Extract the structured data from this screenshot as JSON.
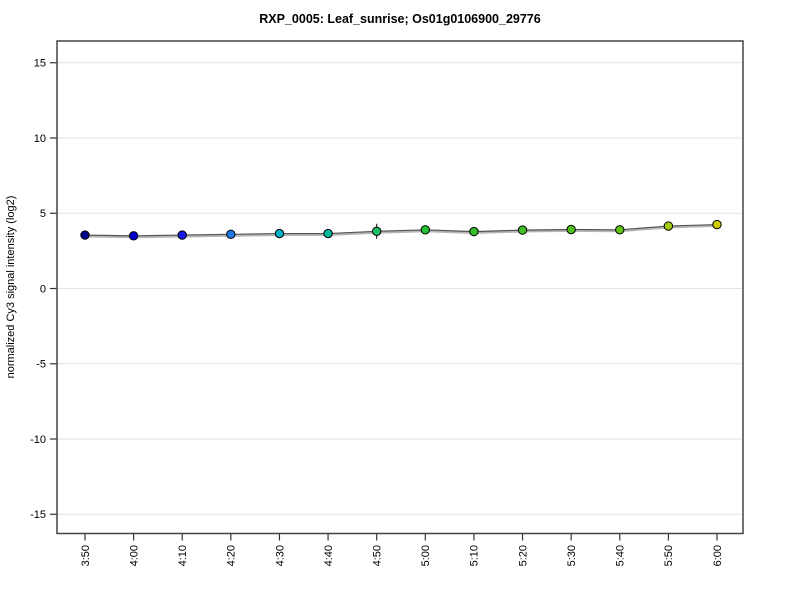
{
  "chart_data": {
    "type": "line",
    "title": "RXP_0005: Leaf_sunrise; Os01g0106900_29776",
    "xlabel": "",
    "ylabel": "normalized Cy3 signal intensity (log2)",
    "ylim": [
      -16.3,
      16.4
    ],
    "yticks": [
      -15,
      -10,
      -5,
      0,
      5,
      10,
      15
    ],
    "grid": true,
    "legend": "none",
    "categories": [
      "3:50",
      "4:00",
      "4:10",
      "4:20",
      "4:30",
      "4:40",
      "4:50",
      "5:00",
      "5:10",
      "5:20",
      "5:30",
      "5:40",
      "5:50",
      "6:00"
    ],
    "series": [
      {
        "name": "Os01g0106900_29776",
        "values": [
          3.55,
          3.5,
          3.55,
          3.6,
          3.65,
          3.65,
          3.8,
          3.9,
          3.78,
          3.88,
          3.92,
          3.9,
          4.15,
          4.25
        ],
        "errors": [
          0.12,
          0.1,
          0.12,
          0.15,
          0.18,
          0.15,
          0.5,
          0.22,
          0.3,
          0.15,
          0.15,
          0.2,
          0.15,
          0.12
        ],
        "point_colors": [
          "#00008B",
          "#0000CD",
          "#1A1AE6",
          "#1E78E6",
          "#00AFC8",
          "#00B89B",
          "#1CBE64",
          "#22C32C",
          "#34BE2C",
          "#40BE24",
          "#4EC01C",
          "#62C414",
          "#A2CC0C",
          "#CCCC00"
        ]
      }
    ],
    "colors": {
      "line": "#555555",
      "line_halo": "#b5b5b5",
      "grid": "#e3e3e3",
      "frame": "#444444",
      "error_bar": "#1a1a1a",
      "point_stroke": "#000000",
      "tick": "#333333"
    }
  }
}
